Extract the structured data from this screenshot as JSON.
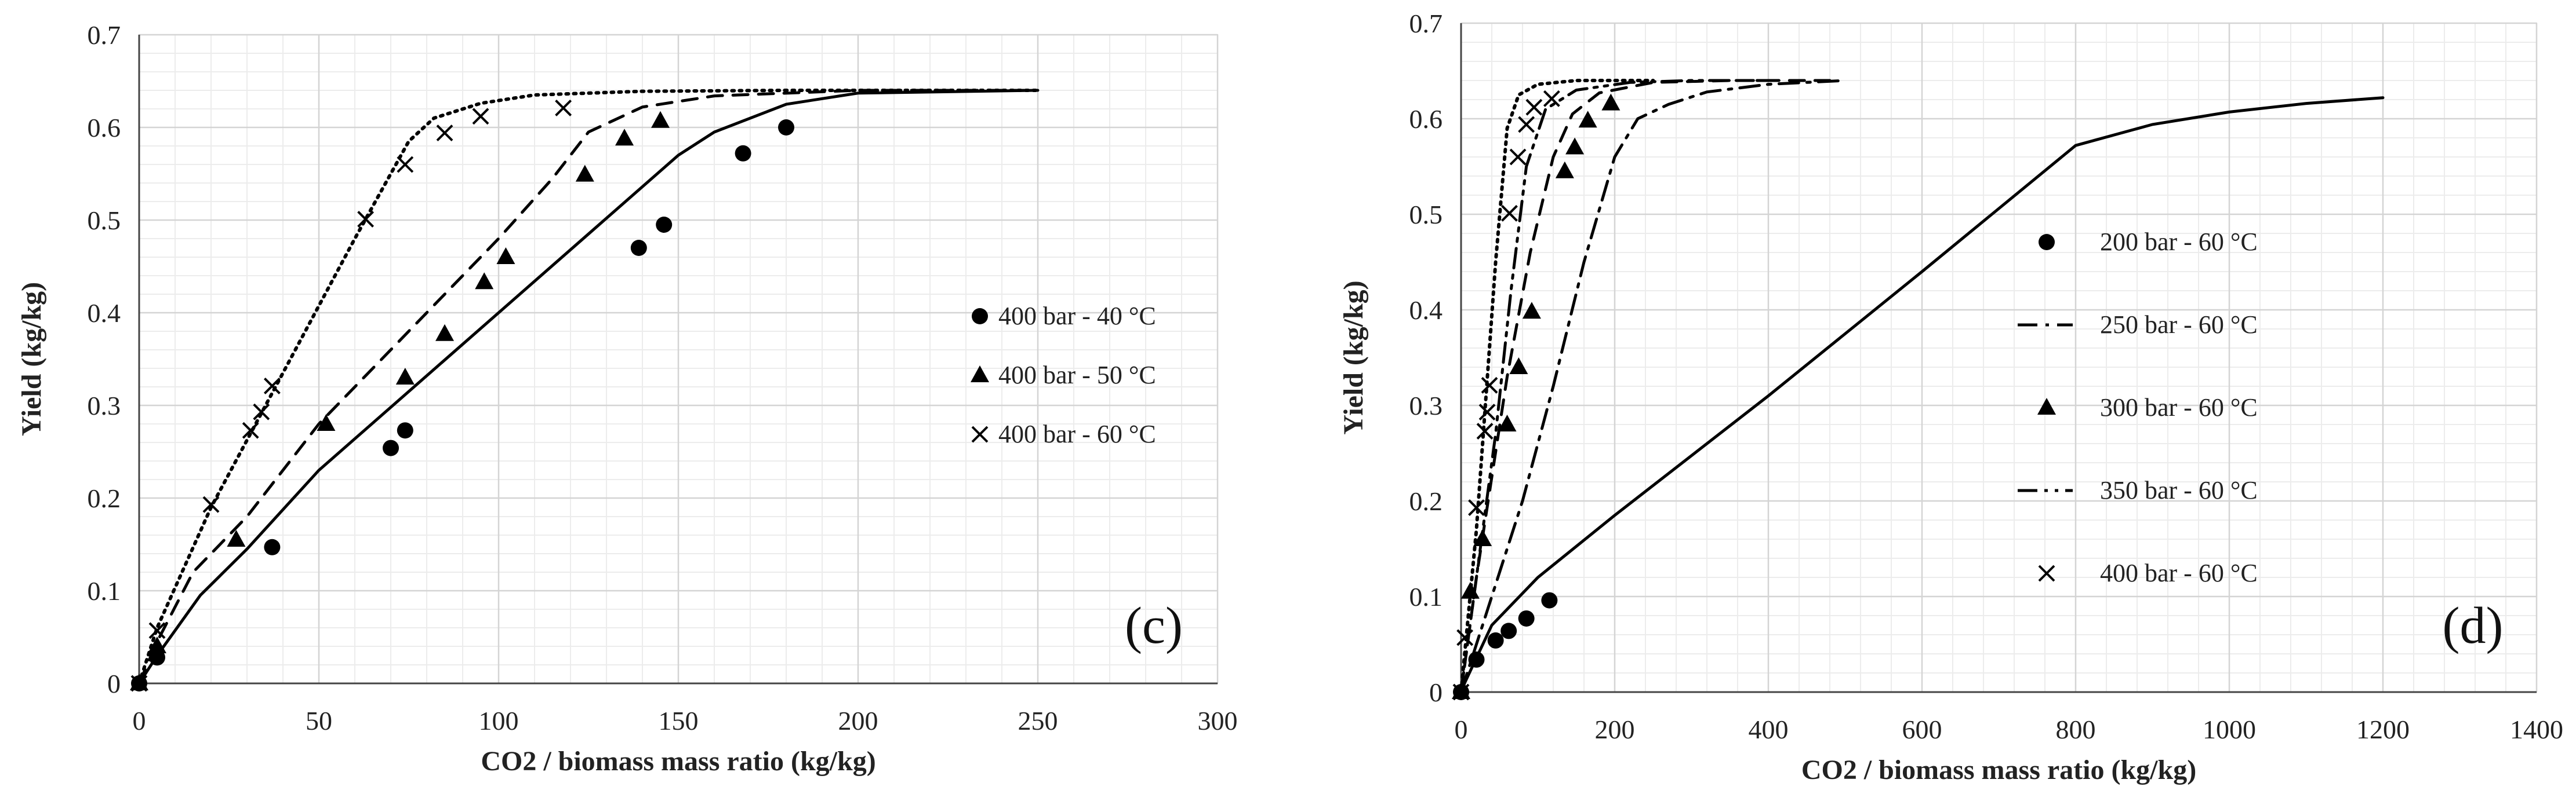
{
  "chart_data": [
    {
      "type": "scatter",
      "panel_label": "(c)",
      "title": "",
      "xlabel": "CO2 / biomass mass ratio (kg/kg)",
      "ylabel": "Yield (kg/kg)",
      "xlim": [
        0,
        300
      ],
      "ylim": [
        0,
        0.7
      ],
      "x_ticks": [
        0,
        50,
        100,
        150,
        200,
        250,
        300
      ],
      "x_tick_labels": [
        "0",
        "50",
        "100",
        "150",
        "200",
        "250",
        "300"
      ],
      "y_ticks": [
        0,
        0.1,
        0.2,
        0.3,
        0.4,
        0.5,
        0.6,
        0.7
      ],
      "y_tick_labels": [
        "0",
        "0.1",
        "0.2",
        "0.3",
        "0.4",
        "0.5",
        "0.6",
        "0.7"
      ],
      "grid": true,
      "legend_position": "right",
      "series": [
        {
          "name": "400 bar - 40 °C",
          "marker": "circle",
          "line": "solid",
          "points": [
            [
              0,
              0
            ],
            [
              5,
              0.028
            ],
            [
              37,
              0.147
            ],
            [
              70,
              0.254
            ],
            [
              74,
              0.273
            ],
            [
              139,
              0.47
            ],
            [
              146,
              0.495
            ],
            [
              168,
              0.572
            ],
            [
              180,
              0.6
            ]
          ],
          "model": [
            [
              0,
              0
            ],
            [
              5,
              0.03
            ],
            [
              17,
              0.095
            ],
            [
              30,
              0.145
            ],
            [
              50,
              0.23
            ],
            [
              100,
              0.4
            ],
            [
              150,
              0.57
            ],
            [
              160,
              0.595
            ],
            [
              180,
              0.625
            ],
            [
              200,
              0.637
            ],
            [
              250,
              0.64
            ]
          ]
        },
        {
          "name": "400 bar - 50 °C",
          "marker": "triangle",
          "line": "dashed",
          "points": [
            [
              0,
              0
            ],
            [
              5,
              0.04
            ],
            [
              27,
              0.155
            ],
            [
              52,
              0.28
            ],
            [
              74,
              0.33
            ],
            [
              85,
              0.377
            ],
            [
              96,
              0.433
            ],
            [
              102,
              0.46
            ],
            [
              124,
              0.549
            ],
            [
              135,
              0.588
            ],
            [
              145,
              0.607
            ]
          ],
          "model": [
            [
              0,
              0
            ],
            [
              5,
              0.045
            ],
            [
              15,
              0.12
            ],
            [
              30,
              0.18
            ],
            [
              50,
              0.28
            ],
            [
              80,
              0.4
            ],
            [
              100,
              0.48
            ],
            [
              115,
              0.545
            ],
            [
              125,
              0.595
            ],
            [
              140,
              0.622
            ],
            [
              160,
              0.634
            ],
            [
              200,
              0.64
            ],
            [
              250,
              0.64
            ]
          ]
        },
        {
          "name": "400 bar - 60 °C",
          "marker": "cross",
          "line": "dotted",
          "points": [
            [
              0,
              0
            ],
            [
              5,
              0.057
            ],
            [
              20,
              0.193
            ],
            [
              31,
              0.273
            ],
            [
              34,
              0.293
            ],
            [
              37,
              0.321
            ],
            [
              63,
              0.501
            ],
            [
              74,
              0.56
            ],
            [
              85,
              0.594
            ],
            [
              95,
              0.612
            ],
            [
              118,
              0.621
            ]
          ],
          "model": [
            [
              0,
              0
            ],
            [
              5,
              0.06
            ],
            [
              20,
              0.19
            ],
            [
              40,
              0.335
            ],
            [
              60,
              0.48
            ],
            [
              75,
              0.585
            ],
            [
              82,
              0.61
            ],
            [
              95,
              0.626
            ],
            [
              110,
              0.635
            ],
            [
              140,
              0.639
            ],
            [
              180,
              0.64
            ],
            [
              250,
              0.64
            ]
          ]
        }
      ]
    },
    {
      "type": "scatter",
      "panel_label": "(d)",
      "title": "",
      "xlabel": "CO2 / biomass mass ratio (kg/kg)",
      "ylabel": "Yield (kg/kg)",
      "xlim": [
        0,
        1400
      ],
      "ylim": [
        0,
        0.7
      ],
      "x_ticks": [
        0,
        200,
        400,
        600,
        800,
        1000,
        1200,
        1400
      ],
      "x_tick_labels": [
        "0",
        "200",
        "400",
        "600",
        "800",
        "1000",
        "1200",
        "1400"
      ],
      "y_ticks": [
        0,
        0.1,
        0.2,
        0.3,
        0.4,
        0.5,
        0.6,
        0.7
      ],
      "y_tick_labels": [
        "0",
        "0.1",
        "0.2",
        "0.3",
        "0.4",
        "0.5",
        "0.6",
        "0.7"
      ],
      "grid": true,
      "legend_position": "right",
      "series": [
        {
          "name": "200 bar - 60 °C",
          "marker": "circle",
          "line": "none",
          "points": [
            [
              0,
              0
            ],
            [
              20,
              0.034
            ],
            [
              45,
              0.054
            ],
            [
              62,
              0.064
            ],
            [
              85,
              0.077
            ],
            [
              115,
              0.096
            ]
          ],
          "model": []
        },
        {
          "name": "250 bar - 60 °C",
          "marker": "none",
          "line": "dashdot",
          "points": [],
          "model": [
            [
              0,
              0
            ],
            [
              40,
              0.1
            ],
            [
              80,
              0.2
            ],
            [
              120,
              0.32
            ],
            [
              160,
              0.45
            ],
            [
              200,
              0.56
            ],
            [
              230,
              0.6
            ],
            [
              270,
              0.615
            ],
            [
              320,
              0.628
            ],
            [
              400,
              0.636
            ],
            [
              500,
              0.64
            ]
          ]
        },
        {
          "name": "300 bar - 60 °C",
          "marker": "triangle",
          "line": "none",
          "points": [
            [
              0,
              0
            ],
            [
              12,
              0.105
            ],
            [
              28,
              0.16
            ],
            [
              60,
              0.28
            ],
            [
              75,
              0.34
            ],
            [
              92,
              0.398
            ],
            [
              135,
              0.545
            ],
            [
              148,
              0.57
            ],
            [
              165,
              0.598
            ],
            [
              195,
              0.616
            ]
          ],
          "model": []
        },
        {
          "name": "350 bar - 60 °C",
          "marker": "none",
          "line": "dashdotdot",
          "points": [],
          "model": [
            [
              0,
              0
            ],
            [
              20,
              0.12
            ],
            [
              45,
              0.27
            ],
            [
              65,
              0.42
            ],
            [
              85,
              0.55
            ],
            [
              110,
              0.61
            ],
            [
              150,
              0.63
            ],
            [
              220,
              0.638
            ],
            [
              300,
              0.64
            ],
            [
              400,
              0.64
            ]
          ]
        },
        {
          "name": "400 bar - 60 °C",
          "marker": "cross",
          "line": "dotted",
          "points": [
            [
              0,
              0
            ],
            [
              5,
              0.057
            ],
            [
              20,
              0.193
            ],
            [
              31,
              0.273
            ],
            [
              34,
              0.293
            ],
            [
              37,
              0.321
            ],
            [
              63,
              0.501
            ],
            [
              74,
              0.56
            ],
            [
              85,
              0.594
            ],
            [
              95,
              0.612
            ],
            [
              118,
              0.621
            ]
          ],
          "model": [
            [
              0,
              0
            ],
            [
              20,
              0.17
            ],
            [
              45,
              0.45
            ],
            [
              60,
              0.59
            ],
            [
              75,
              0.625
            ],
            [
              100,
              0.636
            ],
            [
              150,
              0.64
            ],
            [
              250,
              0.64
            ]
          ]
        },
        {
          "name": "",
          "marker": "none",
          "line": "solid",
          "points": [],
          "model": [
            [
              0,
              0
            ],
            [
              5,
              0.01
            ],
            [
              40,
              0.07
            ],
            [
              100,
              0.12
            ],
            [
              200,
              0.185
            ],
            [
              400,
              0.31
            ],
            [
              600,
              0.44
            ],
            [
              800,
              0.572
            ],
            [
              900,
              0.594
            ],
            [
              1000,
              0.607
            ],
            [
              1100,
              0.616
            ],
            [
              1200,
              0.622
            ]
          ]
        },
        {
          "name": "",
          "marker": "none",
          "line": "dashed",
          "points": [],
          "model": [
            [
              0,
              0
            ],
            [
              20,
              0.12
            ],
            [
              60,
              0.33
            ],
            [
              90,
              0.46
            ],
            [
              120,
              0.56
            ],
            [
              145,
              0.605
            ],
            [
              180,
              0.627
            ],
            [
              250,
              0.638
            ],
            [
              350,
              0.64
            ],
            [
              480,
              0.64
            ]
          ]
        }
      ]
    }
  ]
}
